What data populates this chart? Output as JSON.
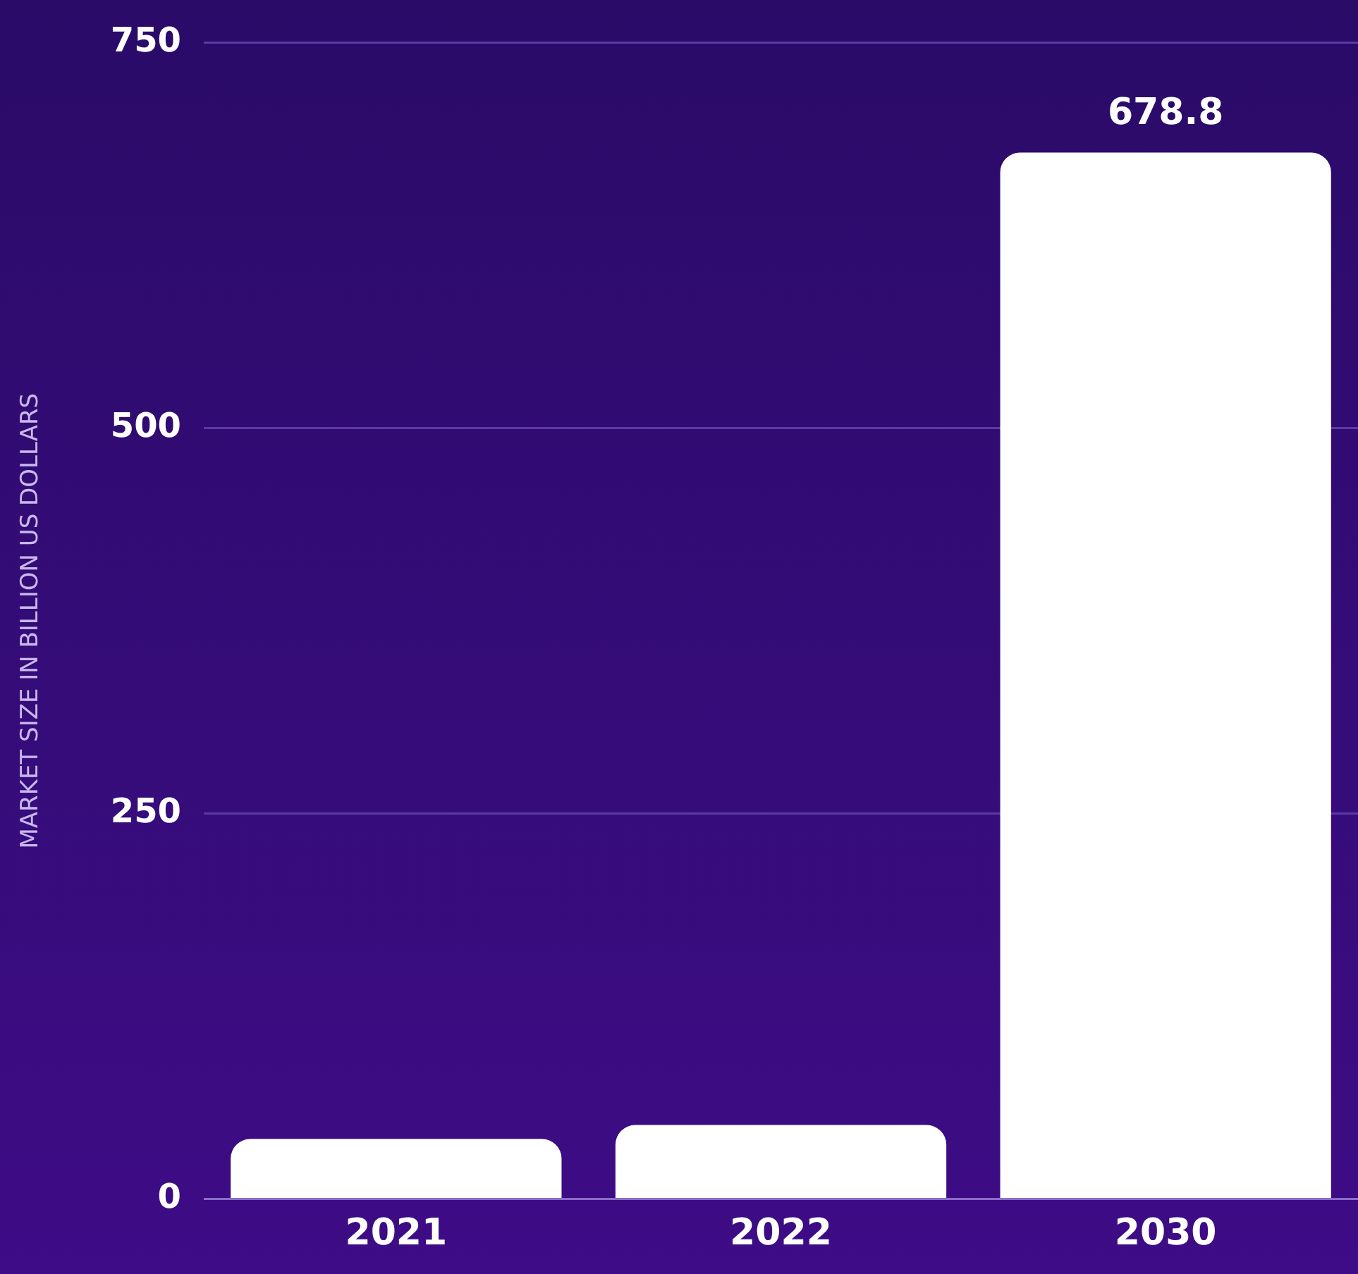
{
  "chart_data": {
    "type": "bar",
    "ylabel": "MARKET SIZE IN BILLION US DOLLARS",
    "categories": [
      "2021",
      "2022",
      "2030"
    ],
    "values": [
      39,
      48,
      678.8
    ],
    "color": "#ffffff",
    "value_labels": [
      null,
      null,
      "678.8"
    ],
    "ylim": [
      0,
      750
    ],
    "yticks": [
      0,
      250,
      500,
      750
    ],
    "grid": "y"
  }
}
